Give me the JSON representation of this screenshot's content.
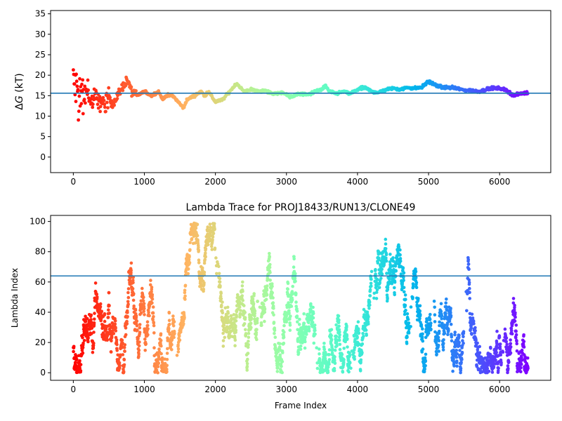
{
  "chart_data": [
    {
      "type": "scatter",
      "title": "",
      "xlabel": "",
      "ylabel": "ΔG (kT)",
      "ylabel_prefix": "Δ",
      "ylabel_italic": "G",
      "ylabel_suffix": " (kT)",
      "xlim": [
        -320,
        6720
      ],
      "ylim": [
        -3.8,
        35.8
      ],
      "xticks": [
        0,
        1000,
        2000,
        3000,
        4000,
        5000,
        6000
      ],
      "xtick_labels": [
        "0",
        "1000",
        "2000",
        "3000",
        "4000",
        "5000",
        "6000"
      ],
      "yticks": [
        0,
        5,
        10,
        15,
        20,
        25,
        30,
        35
      ],
      "ytick_labels": [
        "0",
        "5",
        "10",
        "15",
        "20",
        "25",
        "30",
        "35"
      ],
      "hline": 15.6,
      "hline_color": "#1f77b4",
      "colormap": "rainbow (red at frame 0 → violet at last frame)",
      "n_frames": 6400,
      "trace_points": [
        [
          0,
          18
        ],
        [
          50,
          16
        ],
        [
          100,
          15
        ],
        [
          150,
          14
        ],
        [
          200,
          17
        ],
        [
          250,
          13
        ],
        [
          300,
          15
        ],
        [
          350,
          13
        ],
        [
          400,
          14
        ],
        [
          450,
          12
        ],
        [
          500,
          15
        ],
        [
          550,
          13
        ],
        [
          600,
          14
        ],
        [
          650,
          16
        ],
        [
          700,
          17
        ],
        [
          750,
          19
        ],
        [
          780,
          18
        ],
        [
          820,
          16
        ],
        [
          900,
          15
        ],
        [
          1000,
          16
        ],
        [
          1100,
          15
        ],
        [
          1200,
          16
        ],
        [
          1260,
          14
        ],
        [
          1300,
          15
        ],
        [
          1400,
          15
        ],
        [
          1500,
          13
        ],
        [
          1550,
          12
        ],
        [
          1600,
          14
        ],
        [
          1700,
          15
        ],
        [
          1800,
          16
        ],
        [
          1850,
          15
        ],
        [
          1900,
          16
        ],
        [
          2000,
          13.5
        ],
        [
          2100,
          14
        ],
        [
          2200,
          16
        ],
        [
          2300,
          18
        ],
        [
          2350,
          17
        ],
        [
          2400,
          16
        ],
        [
          2500,
          16.5
        ],
        [
          2600,
          16
        ],
        [
          2700,
          16.2
        ],
        [
          2800,
          15.5
        ],
        [
          2900,
          15.7
        ],
        [
          3000,
          15.5
        ],
        [
          3050,
          14.5
        ],
        [
          3100,
          15
        ],
        [
          3200,
          15.5
        ],
        [
          3300,
          15.2
        ],
        [
          3400,
          16
        ],
        [
          3500,
          16.5
        ],
        [
          3550,
          17.5
        ],
        [
          3600,
          16
        ],
        [
          3700,
          15.5
        ],
        [
          3800,
          16
        ],
        [
          3900,
          15.5
        ],
        [
          4000,
          16.5
        ],
        [
          4100,
          17
        ],
        [
          4200,
          16
        ],
        [
          4300,
          15.8
        ],
        [
          4400,
          16.5
        ],
        [
          4500,
          16.8
        ],
        [
          4600,
          16.5
        ],
        [
          4700,
          17
        ],
        [
          4800,
          16.8
        ],
        [
          4900,
          17
        ],
        [
          5000,
          18.5
        ],
        [
          5100,
          17.5
        ],
        [
          5200,
          17
        ],
        [
          5300,
          17
        ],
        [
          5400,
          16.8
        ],
        [
          5500,
          16.3
        ],
        [
          5600,
          16.3
        ],
        [
          5700,
          16
        ],
        [
          5800,
          16.5
        ],
        [
          5900,
          16.8
        ],
        [
          6000,
          16.8
        ],
        [
          6100,
          16.3
        ],
        [
          6200,
          15
        ],
        [
          6300,
          15.5
        ],
        [
          6400,
          15.7
        ]
      ]
    },
    {
      "type": "scatter",
      "title": "Lambda Trace for PROJ18433/RUN13/CLONE49",
      "xlabel": "Frame Index",
      "ylabel": "Lambda Index",
      "xlim": [
        -320,
        6720
      ],
      "ylim": [
        -5,
        104
      ],
      "xticks": [
        0,
        1000,
        2000,
        3000,
        4000,
        5000,
        6000
      ],
      "xtick_labels": [
        "0",
        "1000",
        "2000",
        "3000",
        "4000",
        "5000",
        "6000"
      ],
      "yticks": [
        0,
        20,
        40,
        60,
        80,
        100
      ],
      "ytick_labels": [
        "0",
        "20",
        "40",
        "60",
        "80",
        "100"
      ],
      "hline": 64,
      "hline_color": "#1f77b4",
      "colormap": "rainbow (red at frame 0 → violet at last frame)",
      "n_frames": 6400,
      "lambda_range": [
        0,
        99
      ],
      "gap_columns": [
        1450,
        2020,
        2620,
        3430,
        3920,
        4220,
        4750,
        5060,
        5520,
        6050
      ]
    }
  ]
}
